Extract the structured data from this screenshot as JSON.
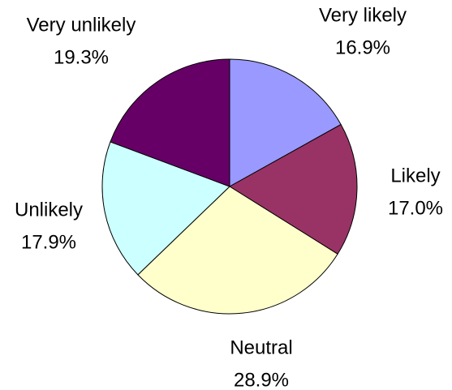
{
  "chart_data": {
    "type": "pie",
    "categories": [
      "Very likely",
      "Likely",
      "Neutral",
      "Unlikely",
      "Very unlikely"
    ],
    "values": [
      16.9,
      17.0,
      28.9,
      17.9,
      19.3
    ],
    "value_labels": [
      "16.9%",
      "17.0%",
      "28.9%",
      "17.9%",
      "19.3%"
    ],
    "colors": [
      "#9999ff",
      "#993366",
      "#ffffcc",
      "#ccffff",
      "#660066"
    ]
  }
}
